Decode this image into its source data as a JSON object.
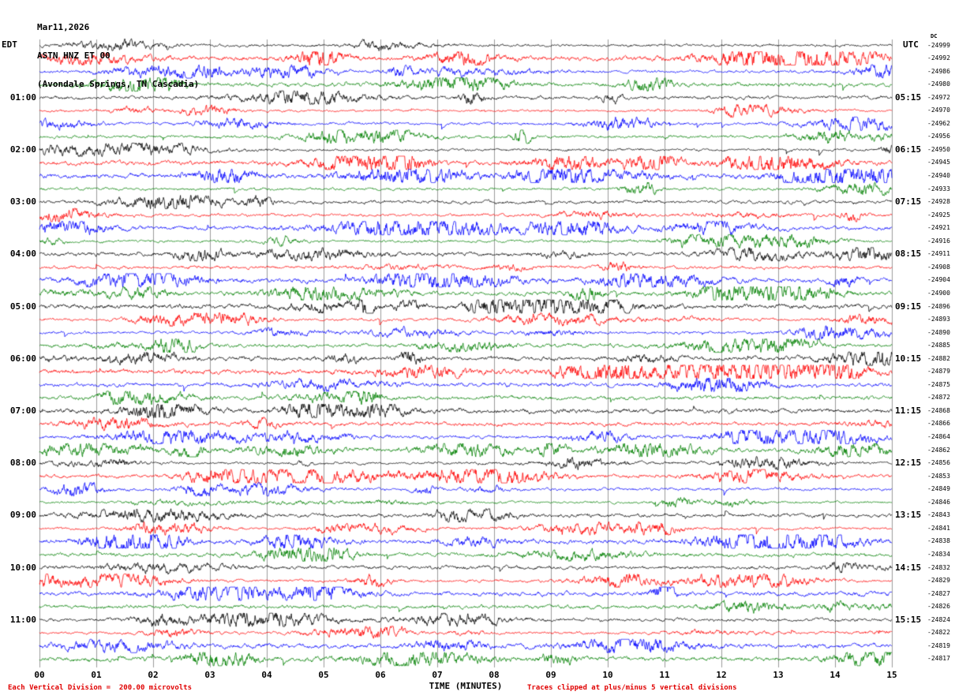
{
  "header": {
    "date": "Mar11,2026",
    "station_line": "ASTN HNZ ET 00",
    "location_line": "(Avondale Springs, TN Cascadia)"
  },
  "axes": {
    "left_title": "EDT",
    "right_title": "UTC",
    "right_offset_title": "DC",
    "x_title": "TIME (MINUTES)",
    "x_ticks": [
      "00",
      "01",
      "02",
      "03",
      "04",
      "05",
      "06",
      "07",
      "08",
      "09",
      "10",
      "11",
      "12",
      "13",
      "14",
      "15"
    ]
  },
  "footer": {
    "left_note": "Each Vertical Division =  200.00 microvolts",
    "right_note": "Traces clipped at plus/minus 5 vertical divisions"
  },
  "colors": {
    "trace_black": "#000000",
    "trace_red": "#ff0000",
    "trace_blue": "#0000ff",
    "trace_green": "#008000",
    "grid": "#9b9b9b",
    "note_red": "#e00000",
    "text": "#000000",
    "background": "#ffffff"
  },
  "chart_data": {
    "type": "line",
    "subtype": "helicorder-seismogram",
    "title": "ASTN HNZ ET 00 (Avondale Springs, TN Cascadia) Mar11,2026",
    "xlabel": "TIME (MINUTES)",
    "x_range_minutes": [
      0,
      15
    ],
    "minutes_per_row": 15,
    "rows_per_hour": 4,
    "grid": "vertical lines every 1 minute",
    "color_cycle": [
      "black",
      "red",
      "blue",
      "green"
    ],
    "vertical_division_microvolts": 200.0,
    "clip_divisions": 5,
    "left_timezone": "EDT",
    "right_timezone": "UTC",
    "rows": [
      {
        "start_edt": "00:00",
        "color": "black",
        "left_label": "",
        "right_label": "",
        "offset": -24999
      },
      {
        "start_edt": "00:15",
        "color": "red",
        "left_label": "",
        "right_label": "",
        "offset": -24992
      },
      {
        "start_edt": "00:30",
        "color": "blue",
        "left_label": "",
        "right_label": "",
        "offset": -24986
      },
      {
        "start_edt": "00:45",
        "color": "green",
        "left_label": "",
        "right_label": "",
        "offset": -24980
      },
      {
        "start_edt": "01:00",
        "color": "black",
        "left_label": "01:00",
        "right_label": "05:15",
        "offset": -24972
      },
      {
        "start_edt": "01:15",
        "color": "red",
        "left_label": "",
        "right_label": "",
        "offset": -24970
      },
      {
        "start_edt": "01:30",
        "color": "blue",
        "left_label": "",
        "right_label": "",
        "offset": -24962
      },
      {
        "start_edt": "01:45",
        "color": "green",
        "left_label": "",
        "right_label": "",
        "offset": -24956
      },
      {
        "start_edt": "02:00",
        "color": "black",
        "left_label": "02:00",
        "right_label": "06:15",
        "offset": -24950
      },
      {
        "start_edt": "02:15",
        "color": "red",
        "left_label": "",
        "right_label": "",
        "offset": -24945
      },
      {
        "start_edt": "02:30",
        "color": "blue",
        "left_label": "",
        "right_label": "",
        "offset": -24940
      },
      {
        "start_edt": "02:45",
        "color": "green",
        "left_label": "",
        "right_label": "",
        "offset": -24933
      },
      {
        "start_edt": "03:00",
        "color": "black",
        "left_label": "03:00",
        "right_label": "07:15",
        "offset": -24928
      },
      {
        "start_edt": "03:15",
        "color": "red",
        "left_label": "",
        "right_label": "",
        "offset": -24925
      },
      {
        "start_edt": "03:30",
        "color": "blue",
        "left_label": "",
        "right_label": "",
        "offset": -24921
      },
      {
        "start_edt": "03:45",
        "color": "green",
        "left_label": "",
        "right_label": "",
        "offset": -24916
      },
      {
        "start_edt": "04:00",
        "color": "black",
        "left_label": "04:00",
        "right_label": "08:15",
        "offset": -24911
      },
      {
        "start_edt": "04:15",
        "color": "red",
        "left_label": "",
        "right_label": "",
        "offset": -24908
      },
      {
        "start_edt": "04:30",
        "color": "blue",
        "left_label": "",
        "right_label": "",
        "offset": -24904
      },
      {
        "start_edt": "04:45",
        "color": "green",
        "left_label": "",
        "right_label": "",
        "offset": -24900
      },
      {
        "start_edt": "05:00",
        "color": "black",
        "left_label": "05:00",
        "right_label": "09:15",
        "offset": -24896
      },
      {
        "start_edt": "05:15",
        "color": "red",
        "left_label": "",
        "right_label": "",
        "offset": -24893
      },
      {
        "start_edt": "05:30",
        "color": "blue",
        "left_label": "",
        "right_label": "",
        "offset": -24890
      },
      {
        "start_edt": "05:45",
        "color": "green",
        "left_label": "",
        "right_label": "",
        "offset": -24885
      },
      {
        "start_edt": "06:00",
        "color": "black",
        "left_label": "06:00",
        "right_label": "10:15",
        "offset": -24882
      },
      {
        "start_edt": "06:15",
        "color": "red",
        "left_label": "",
        "right_label": "",
        "offset": -24879
      },
      {
        "start_edt": "06:30",
        "color": "blue",
        "left_label": "",
        "right_label": "",
        "offset": -24875
      },
      {
        "start_edt": "06:45",
        "color": "green",
        "left_label": "",
        "right_label": "",
        "offset": -24872
      },
      {
        "start_edt": "07:00",
        "color": "black",
        "left_label": "07:00",
        "right_label": "11:15",
        "offset": -24868
      },
      {
        "start_edt": "07:15",
        "color": "red",
        "left_label": "",
        "right_label": "",
        "offset": -24866
      },
      {
        "start_edt": "07:30",
        "color": "blue",
        "left_label": "",
        "right_label": "",
        "offset": -24864
      },
      {
        "start_edt": "07:45",
        "color": "green",
        "left_label": "",
        "right_label": "",
        "offset": -24862
      },
      {
        "start_edt": "08:00",
        "color": "black",
        "left_label": "08:00",
        "right_label": "12:15",
        "offset": -24856
      },
      {
        "start_edt": "08:15",
        "color": "red",
        "left_label": "",
        "right_label": "",
        "offset": -24853
      },
      {
        "start_edt": "08:30",
        "color": "blue",
        "left_label": "",
        "right_label": "",
        "offset": -24849
      },
      {
        "start_edt": "08:45",
        "color": "green",
        "left_label": "",
        "right_label": "",
        "offset": -24846
      },
      {
        "start_edt": "09:00",
        "color": "black",
        "left_label": "09:00",
        "right_label": "13:15",
        "offset": -24843
      },
      {
        "start_edt": "09:15",
        "color": "red",
        "left_label": "",
        "right_label": "",
        "offset": -24841
      },
      {
        "start_edt": "09:30",
        "color": "blue",
        "left_label": "",
        "right_label": "",
        "offset": -24838
      },
      {
        "start_edt": "09:45",
        "color": "green",
        "left_label": "",
        "right_label": "",
        "offset": -24834
      },
      {
        "start_edt": "10:00",
        "color": "black",
        "left_label": "10:00",
        "right_label": "14:15",
        "offset": -24832
      },
      {
        "start_edt": "10:15",
        "color": "red",
        "left_label": "",
        "right_label": "",
        "offset": -24829
      },
      {
        "start_edt": "10:30",
        "color": "blue",
        "left_label": "",
        "right_label": "",
        "offset": -24827
      },
      {
        "start_edt": "10:45",
        "color": "green",
        "left_label": "",
        "right_label": "",
        "offset": -24826
      },
      {
        "start_edt": "11:00",
        "color": "black",
        "left_label": "11:00",
        "right_label": "15:15",
        "offset": -24824
      },
      {
        "start_edt": "11:15",
        "color": "red",
        "left_label": "",
        "right_label": "",
        "offset": -24822
      },
      {
        "start_edt": "11:30",
        "color": "blue",
        "left_label": "",
        "right_label": "",
        "offset": -24819
      },
      {
        "start_edt": "11:45",
        "color": "green",
        "left_label": "",
        "right_label": "",
        "offset": -24817
      }
    ]
  }
}
